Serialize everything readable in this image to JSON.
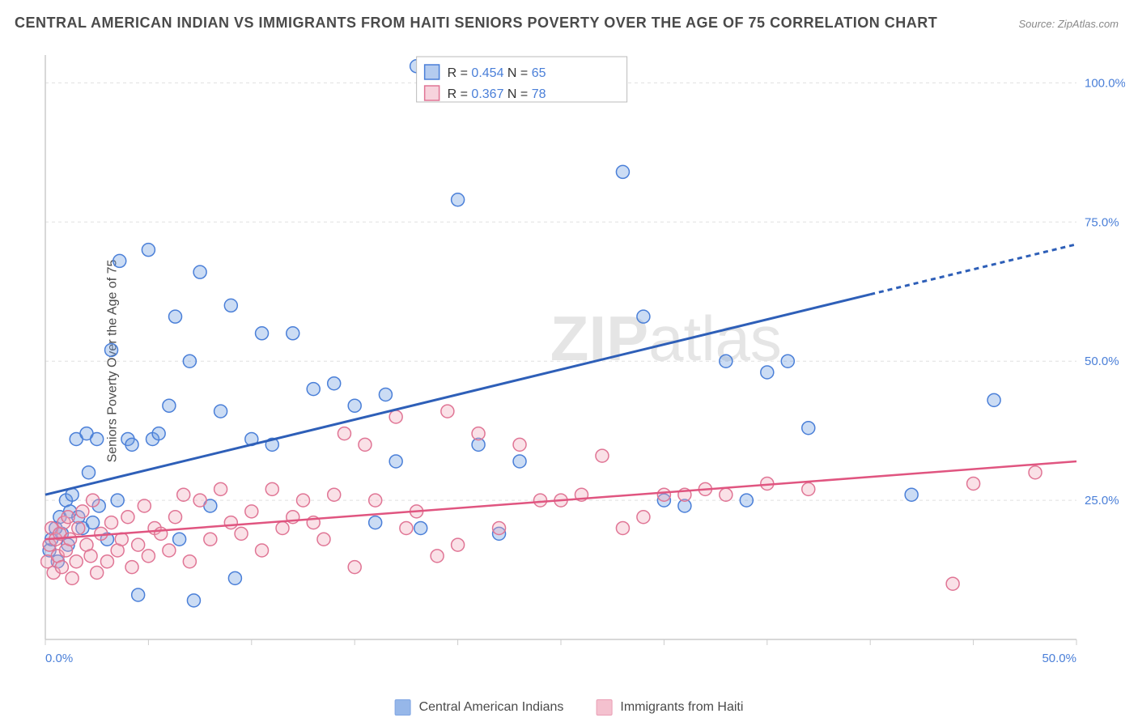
{
  "title": "CENTRAL AMERICAN INDIAN VS IMMIGRANTS FROM HAITI SENIORS POVERTY OVER THE AGE OF 75 CORRELATION CHART",
  "source": "Source: ZipAtlas.com",
  "ylabel": "Seniors Poverty Over the Age of 75",
  "watermark_a": "ZIP",
  "watermark_b": "atlas",
  "chart": {
    "type": "scatter",
    "xlim": [
      0,
      50
    ],
    "ylim": [
      0,
      105
    ],
    "x_ticks": [
      0,
      5,
      10,
      15,
      20,
      25,
      30,
      35,
      40,
      45,
      50
    ],
    "x_tick_labels": {
      "0": "0.0%",
      "50": "50.0%"
    },
    "y_gridlines": [
      25,
      50,
      75,
      100
    ],
    "y_tick_labels": {
      "25": "25.0%",
      "50": "50.0%",
      "75": "75.0%",
      "100": "100.0%"
    },
    "background_color": "#ffffff",
    "grid_color": "#e0e0e0",
    "axis_color": "#cccccc",
    "tick_label_color": "#4a7fd8",
    "marker_radius": 8,
    "marker_fill_opacity": 0.35,
    "marker_stroke_width": 1.5,
    "series": [
      {
        "name": "Central American Indians",
        "legend_label": "Central American Indians",
        "color": "#6b9ae0",
        "stroke": "#4a7fd8",
        "R": "0.454",
        "N": "65",
        "trend": {
          "x1": 0,
          "y1": 26,
          "x2": 40,
          "y2": 62,
          "x_extend": 50,
          "y_extend": 71,
          "color": "#2e5fb8",
          "width": 3
        },
        "points": [
          [
            0.2,
            16
          ],
          [
            0.3,
            18
          ],
          [
            0.5,
            20
          ],
          [
            0.6,
            14
          ],
          [
            0.7,
            22
          ],
          [
            0.8,
            19
          ],
          [
            1.0,
            25
          ],
          [
            1.1,
            17
          ],
          [
            1.2,
            23
          ],
          [
            1.3,
            26
          ],
          [
            1.5,
            36
          ],
          [
            1.6,
            22
          ],
          [
            1.8,
            20
          ],
          [
            2.0,
            37
          ],
          [
            2.1,
            30
          ],
          [
            2.3,
            21
          ],
          [
            2.5,
            36
          ],
          [
            2.6,
            24
          ],
          [
            3.0,
            18
          ],
          [
            3.2,
            52
          ],
          [
            3.5,
            25
          ],
          [
            3.6,
            68
          ],
          [
            4.0,
            36
          ],
          [
            4.2,
            35
          ],
          [
            4.5,
            8
          ],
          [
            5.0,
            70
          ],
          [
            5.2,
            36
          ],
          [
            5.5,
            37
          ],
          [
            6.0,
            42
          ],
          [
            6.3,
            58
          ],
          [
            6.5,
            18
          ],
          [
            7.0,
            50
          ],
          [
            7.2,
            7
          ],
          [
            7.5,
            66
          ],
          [
            8.0,
            24
          ],
          [
            8.5,
            41
          ],
          [
            9.0,
            60
          ],
          [
            9.2,
            11
          ],
          [
            10.0,
            36
          ],
          [
            10.5,
            55
          ],
          [
            11.0,
            35
          ],
          [
            12.0,
            55
          ],
          [
            13.0,
            45
          ],
          [
            14.0,
            46
          ],
          [
            15.0,
            42
          ],
          [
            16.0,
            21
          ],
          [
            16.5,
            44
          ],
          [
            17.0,
            32
          ],
          [
            18.0,
            103
          ],
          [
            18.2,
            20
          ],
          [
            20.0,
            79
          ],
          [
            21.0,
            35
          ],
          [
            22.0,
            19
          ],
          [
            23.0,
            32
          ],
          [
            28.0,
            84
          ],
          [
            29.0,
            58
          ],
          [
            30.0,
            25
          ],
          [
            31.0,
            24
          ],
          [
            33.0,
            50
          ],
          [
            34.0,
            25
          ],
          [
            35.0,
            48
          ],
          [
            36.0,
            50
          ],
          [
            37.0,
            38
          ],
          [
            42.0,
            26
          ],
          [
            46.0,
            43
          ]
        ]
      },
      {
        "name": "Immigrants from Haiti",
        "legend_label": "Immigrants from Haiti",
        "color": "#f0a8bb",
        "stroke": "#e07595",
        "R": "0.367",
        "N": "78",
        "trend": {
          "x1": 0,
          "y1": 18,
          "x2": 50,
          "y2": 32,
          "color": "#e05580",
          "width": 2.5
        },
        "points": [
          [
            0.1,
            14
          ],
          [
            0.2,
            17
          ],
          [
            0.3,
            20
          ],
          [
            0.4,
            12
          ],
          [
            0.5,
            18
          ],
          [
            0.6,
            15
          ],
          [
            0.7,
            19
          ],
          [
            0.8,
            13
          ],
          [
            0.9,
            21
          ],
          [
            1.0,
            16
          ],
          [
            1.1,
            22
          ],
          [
            1.2,
            18
          ],
          [
            1.3,
            11
          ],
          [
            1.5,
            14
          ],
          [
            1.6,
            20
          ],
          [
            1.8,
            23
          ],
          [
            2.0,
            17
          ],
          [
            2.2,
            15
          ],
          [
            2.3,
            25
          ],
          [
            2.5,
            12
          ],
          [
            2.7,
            19
          ],
          [
            3.0,
            14
          ],
          [
            3.2,
            21
          ],
          [
            3.5,
            16
          ],
          [
            3.7,
            18
          ],
          [
            4.0,
            22
          ],
          [
            4.2,
            13
          ],
          [
            4.5,
            17
          ],
          [
            4.8,
            24
          ],
          [
            5.0,
            15
          ],
          [
            5.3,
            20
          ],
          [
            5.6,
            19
          ],
          [
            6.0,
            16
          ],
          [
            6.3,
            22
          ],
          [
            6.7,
            26
          ],
          [
            7.0,
            14
          ],
          [
            7.5,
            25
          ],
          [
            8.0,
            18
          ],
          [
            8.5,
            27
          ],
          [
            9.0,
            21
          ],
          [
            9.5,
            19
          ],
          [
            10.0,
            23
          ],
          [
            10.5,
            16
          ],
          [
            11.0,
            27
          ],
          [
            11.5,
            20
          ],
          [
            12.0,
            22
          ],
          [
            12.5,
            25
          ],
          [
            13.0,
            21
          ],
          [
            13.5,
            18
          ],
          [
            14.0,
            26
          ],
          [
            14.5,
            37
          ],
          [
            15.0,
            13
          ],
          [
            15.5,
            35
          ],
          [
            16.0,
            25
          ],
          [
            17.0,
            40
          ],
          [
            17.5,
            20
          ],
          [
            18.0,
            23
          ],
          [
            19.0,
            15
          ],
          [
            19.5,
            41
          ],
          [
            20.0,
            17
          ],
          [
            21.0,
            37
          ],
          [
            22.0,
            20
          ],
          [
            23.0,
            35
          ],
          [
            24.0,
            25
          ],
          [
            25.0,
            25
          ],
          [
            26.0,
            26
          ],
          [
            27.0,
            33
          ],
          [
            28.0,
            20
          ],
          [
            29.0,
            22
          ],
          [
            30.0,
            26
          ],
          [
            31.0,
            26
          ],
          [
            32.0,
            27
          ],
          [
            33.0,
            26
          ],
          [
            35.0,
            28
          ],
          [
            37.0,
            27
          ],
          [
            44.0,
            10
          ],
          [
            45.0,
            28
          ],
          [
            48.0,
            30
          ]
        ]
      }
    ]
  },
  "stats_legend": {
    "R_label": "R =",
    "N_label": "N ="
  }
}
